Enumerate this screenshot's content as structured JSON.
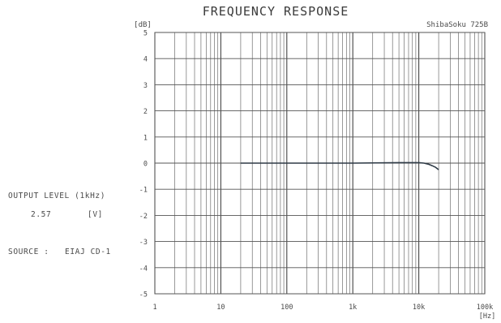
{
  "chart_data": {
    "type": "line",
    "title": "FREQUENCY RESPONSE",
    "brand": "ShibaSoku 725B",
    "ylabel": "[dB]",
    "xlabel": "[Hz]",
    "x_scale": "log",
    "xlim": [
      1,
      100000
    ],
    "ylim": [
      -5,
      5
    ],
    "grid": true,
    "y_ticks": [
      {
        "value": 5,
        "label": "5"
      },
      {
        "value": 4,
        "label": "4"
      },
      {
        "value": 3,
        "label": "3"
      },
      {
        "value": 2,
        "label": "2"
      },
      {
        "value": 1,
        "label": "1"
      },
      {
        "value": 0,
        "label": "0"
      },
      {
        "value": -1,
        "label": "-1"
      },
      {
        "value": -2,
        "label": "-2"
      },
      {
        "value": -3,
        "label": "-3"
      },
      {
        "value": -4,
        "label": "-4"
      },
      {
        "value": -5,
        "label": "-5"
      }
    ],
    "x_ticks": [
      {
        "value": 1,
        "label": "1"
      },
      {
        "value": 10,
        "label": "10"
      },
      {
        "value": 100,
        "label": "100"
      },
      {
        "value": 1000,
        "label": "1k"
      },
      {
        "value": 10000,
        "label": "10k"
      },
      {
        "value": 100000,
        "label": "100k"
      }
    ],
    "series": [
      {
        "color": "#2e3a46",
        "x": [
          20,
          100,
          1000,
          5000,
          10000,
          12000,
          14000,
          16000,
          18000,
          20000
        ],
        "y": [
          0.0,
          0.0,
          0.0,
          0.02,
          0.02,
          0.0,
          -0.04,
          -0.1,
          -0.16,
          -0.25
        ]
      }
    ]
  },
  "info": {
    "output_level_label": "OUTPUT LEVEL (1kHz)",
    "output_level_value": "2.57",
    "output_level_unit": "[V]",
    "source_label": "SOURCE :",
    "source_value": "EIAJ CD-1"
  }
}
